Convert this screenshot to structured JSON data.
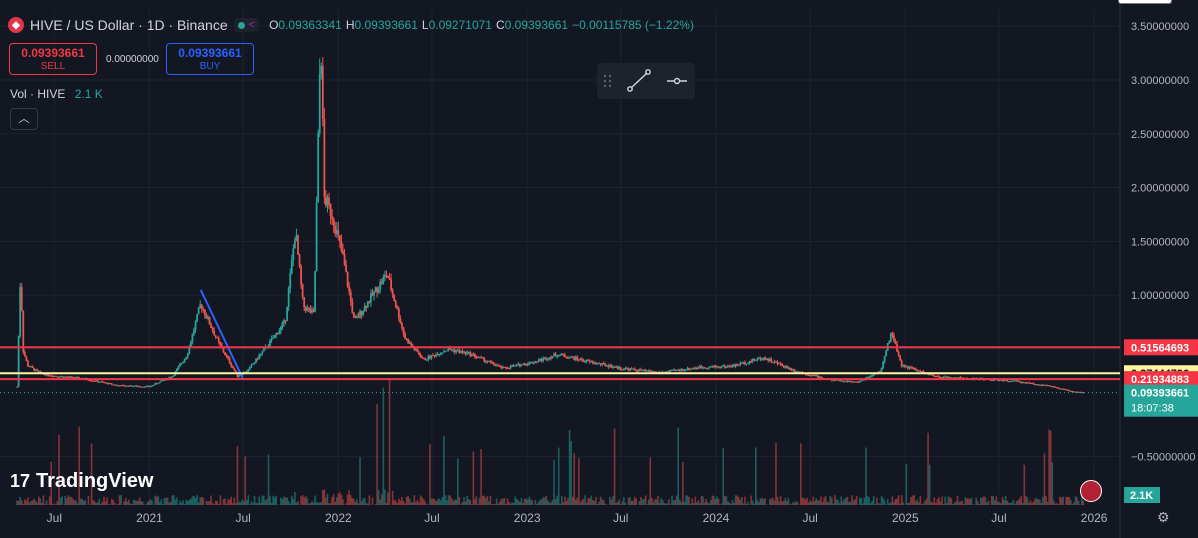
{
  "header": {
    "symbol": "HIVE / US Dollar · 1D · Binance",
    "ohlc": [
      {
        "k": "O",
        "v": "0.09363341"
      },
      {
        "k": "H",
        "v": "0.09393661"
      },
      {
        "k": "L",
        "v": "0.09271071"
      },
      {
        "k": "C",
        "v": "0.09393661"
      }
    ],
    "change": "−0.00115785 (−1.22%)"
  },
  "trade": {
    "sell_price": "0.09393661",
    "sell_label": "SELL",
    "spread": "0.00000000",
    "buy_price": "0.09393661",
    "buy_label": "BUY"
  },
  "volume": {
    "label": "Vol · HIVE",
    "value": "2.1 K"
  },
  "watermark": "TradingView",
  "colors": {
    "background": "#131722",
    "up": "#26a69a",
    "down": "#ef5350",
    "resistance": "#f23645",
    "trendline": "#2962ff"
  },
  "chart_data": {
    "type": "line",
    "title": "HIVE / US Dollar · 1D · Binance",
    "y_ticks": [
      3.5,
      3.0,
      2.5,
      2.0,
      1.5,
      1.0,
      0.5,
      -0.5
    ],
    "y_tick_labels": [
      "3.50000000",
      "3.00000000",
      "2.50000000",
      "2.00000000",
      "1.50000000",
      "1.00000000",
      "0.50000000",
      "−0.50000000"
    ],
    "ylim": [
      -0.95,
      3.65
    ],
    "x_ticks": [
      "2020-07-01",
      "2021-01-01",
      "2021-07-01",
      "2022-01-01",
      "2022-07-01",
      "2023-01-01",
      "2023-07-01",
      "2024-01-01",
      "2024-07-01",
      "2025-01-01",
      "2025-07-01",
      "2026-01-01"
    ],
    "x_tick_labels": [
      "Jul",
      "2021",
      "Jul",
      "2022",
      "Jul",
      "2023",
      "Jul",
      "2024",
      "Jul",
      "2025",
      "Jul",
      "2026"
    ],
    "xlim": [
      "2020-03-18",
      "2026-02-20"
    ],
    "price_series": [
      [
        "2020-04-20",
        0.15
      ],
      [
        "2020-04-27",
        1.25
      ],
      [
        "2020-05-01",
        0.5
      ],
      [
        "2020-05-10",
        0.35
      ],
      [
        "2020-06-01",
        0.28
      ],
      [
        "2020-07-01",
        0.25
      ],
      [
        "2020-09-01",
        0.22
      ],
      [
        "2020-11-01",
        0.16
      ],
      [
        "2021-01-01",
        0.15
      ],
      [
        "2021-02-15",
        0.25
      ],
      [
        "2021-03-15",
        0.45
      ],
      [
        "2021-04-10",
        0.92
      ],
      [
        "2021-05-15",
        0.55
      ],
      [
        "2021-06-20",
        0.25
      ],
      [
        "2021-07-10",
        0.3
      ],
      [
        "2021-08-20",
        0.55
      ],
      [
        "2021-09-20",
        0.75
      ],
      [
        "2021-10-10",
        1.6
      ],
      [
        "2021-10-25",
        0.9
      ],
      [
        "2021-11-15",
        0.82
      ],
      [
        "2021-11-28",
        3.45
      ],
      [
        "2021-12-05",
        1.9
      ],
      [
        "2021-12-20",
        1.75
      ],
      [
        "2022-01-10",
        1.35
      ],
      [
        "2022-02-01",
        0.75
      ],
      [
        "2022-03-01",
        0.95
      ],
      [
        "2022-04-05",
        1.2
      ],
      [
        "2022-05-10",
        0.6
      ],
      [
        "2022-06-15",
        0.4
      ],
      [
        "2022-08-01",
        0.5
      ],
      [
        "2022-09-15",
        0.45
      ],
      [
        "2022-11-15",
        0.32
      ],
      [
        "2023-01-15",
        0.38
      ],
      [
        "2023-03-01",
        0.45
      ],
      [
        "2023-05-01",
        0.38
      ],
      [
        "2023-07-01",
        0.32
      ],
      [
        "2023-09-15",
        0.28
      ],
      [
        "2023-12-01",
        0.33
      ],
      [
        "2024-02-01",
        0.34
      ],
      [
        "2024-04-01",
        0.42
      ],
      [
        "2024-06-01",
        0.3
      ],
      [
        "2024-08-01",
        0.22
      ],
      [
        "2024-10-01",
        0.19
      ],
      [
        "2024-11-15",
        0.3
      ],
      [
        "2024-12-05",
        0.66
      ],
      [
        "2024-12-25",
        0.35
      ],
      [
        "2025-03-01",
        0.24
      ],
      [
        "2025-06-01",
        0.22
      ],
      [
        "2025-08-01",
        0.2
      ],
      [
        "2025-10-01",
        0.16
      ],
      [
        "2025-11-15",
        0.11
      ],
      [
        "2025-12-13",
        0.09393661
      ]
    ],
    "trend_line": [
      [
        "2021-04-10",
        1.05
      ],
      [
        "2021-07-01",
        0.22
      ]
    ],
    "price_levels": [
      {
        "value": 0.51564693,
        "label": "0.51564693",
        "color": "#f23645"
      },
      {
        "value": 0.27444796,
        "label": "0.27444796",
        "color": "#fff59d"
      },
      {
        "value": 0.21934883,
        "label": "0.21934883",
        "color": "#f23645"
      }
    ],
    "last_price": {
      "value": 0.09393661,
      "label": "0.09393661",
      "countdown": "18:07:38"
    },
    "volume_label": "2.1K",
    "grid": true
  }
}
